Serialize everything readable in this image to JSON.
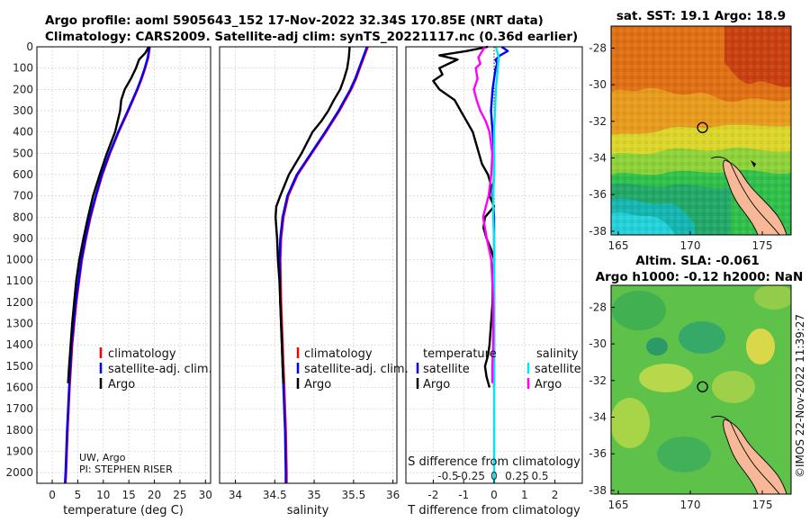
{
  "titles": {
    "line1": "Argo profile: aoml 5905643_152 17-Nov-2022 32.34S 170.85E (NRT data)",
    "line2": "Climatology: CARS2009. Satellite-adj clim: synTS_20221117.nc (0.36d earlier)"
  },
  "credits": {
    "line1": "UW, Argo",
    "line2": "PI: STEPHEN RISER"
  },
  "watermark": "©IMOS 22-Nov-2022 11:39:27",
  "legend": {
    "climatology": "climatology",
    "satellite_adj": "satellite-adj. clim.",
    "argo": "Argo",
    "temperature": "temperature",
    "salinity": "salinity",
    "satellite": "satellite"
  },
  "colors": {
    "climatology": "#ff0000",
    "satellite_adj": "#0000ff",
    "argo": "#000000",
    "sat_temp": "#0000ff",
    "sat_sal": "#00e5ee",
    "argo_sal": "#ff00ff"
  },
  "chart_data": [
    {
      "type": "line",
      "name": "temperature",
      "xlabel": "temperature (deg C)",
      "ylabel": "",
      "xlim": [
        -3,
        31
      ],
      "ylim": [
        2050,
        0
      ],
      "xticks": [
        0,
        5,
        10,
        15,
        20,
        25,
        30
      ],
      "yticks": [
        0,
        100,
        200,
        300,
        400,
        500,
        600,
        700,
        800,
        900,
        1000,
        1100,
        1200,
        1300,
        1400,
        1500,
        1600,
        1700,
        1800,
        1900,
        2000
      ],
      "series": [
        {
          "name": "climatology",
          "depth": [
            0,
            50,
            100,
            150,
            200,
            300,
            400,
            500,
            600,
            700,
            800,
            900,
            1000,
            1200,
            1400,
            1600,
            1800,
            2000,
            2050
          ],
          "values": [
            19.1,
            18.8,
            18.2,
            17.5,
            16.7,
            14.9,
            13.0,
            11.3,
            9.8,
            8.6,
            7.5,
            6.6,
            5.8,
            4.7,
            3.9,
            3.4,
            3.0,
            2.7,
            2.6
          ]
        },
        {
          "name": "satellite-adj. clim.",
          "depth": [
            0,
            50,
            100,
            150,
            200,
            300,
            400,
            500,
            600,
            700,
            800,
            900,
            1000,
            1200,
            1400,
            1600,
            1800,
            2000,
            2050
          ],
          "values": [
            19.0,
            18.7,
            18.1,
            17.4,
            16.6,
            14.8,
            12.9,
            11.2,
            9.7,
            8.5,
            7.4,
            6.5,
            5.7,
            4.6,
            3.8,
            3.3,
            2.9,
            2.6,
            2.5
          ]
        },
        {
          "name": "Argo",
          "depth": [
            0,
            30,
            60,
            100,
            150,
            200,
            250,
            300,
            400,
            500,
            600,
            700,
            800,
            900,
            1000,
            1100,
            1200,
            1300,
            1400,
            1500,
            1580
          ],
          "values": [
            18.9,
            18.2,
            17.0,
            16.4,
            15.4,
            14.2,
            13.5,
            13.3,
            12.3,
            10.7,
            9.3,
            8.0,
            7.0,
            6.1,
            5.3,
            4.7,
            4.3,
            3.9,
            3.6,
            3.3,
            3.1
          ]
        }
      ]
    },
    {
      "type": "line",
      "name": "salinity",
      "xlabel": "salinity",
      "ylabel": "",
      "xlim": [
        33.8,
        36.05
      ],
      "ylim": [
        2050,
        0
      ],
      "xticks": [
        34,
        34.5,
        35,
        35.5,
        36
      ],
      "series": [
        {
          "name": "climatology",
          "depth": [
            0,
            50,
            100,
            150,
            200,
            300,
            400,
            500,
            600,
            700,
            800,
            900,
            1000,
            1200,
            1400,
            1600,
            1800,
            2000,
            2050
          ],
          "values": [
            35.68,
            35.63,
            35.58,
            35.53,
            35.47,
            35.32,
            35.15,
            34.97,
            34.79,
            34.67,
            34.61,
            34.58,
            34.57,
            34.58,
            34.6,
            34.62,
            34.64,
            34.65,
            34.65
          ]
        },
        {
          "name": "satellite-adj. clim.",
          "depth": [
            0,
            50,
            100,
            150,
            200,
            300,
            400,
            500,
            600,
            700,
            800,
            900,
            1000,
            1200,
            1400,
            1600,
            1800,
            2000,
            2050
          ],
          "values": [
            35.67,
            35.62,
            35.57,
            35.52,
            35.46,
            35.31,
            35.14,
            34.96,
            34.78,
            34.66,
            34.6,
            34.57,
            34.56,
            34.57,
            34.59,
            34.61,
            34.63,
            34.64,
            34.64
          ]
        },
        {
          "name": "Argo",
          "depth": [
            0,
            50,
            100,
            150,
            200,
            250,
            300,
            350,
            400,
            500,
            600,
            700,
            750,
            800,
            900,
            1000,
            1100,
            1200,
            1300,
            1400,
            1500,
            1580
          ],
          "values": [
            35.45,
            35.44,
            35.42,
            35.38,
            35.33,
            35.25,
            35.18,
            35.09,
            34.98,
            34.84,
            34.68,
            34.57,
            34.52,
            34.51,
            34.53,
            34.54,
            34.56,
            34.57,
            34.58,
            34.59,
            34.6,
            34.61
          ]
        }
      ]
    },
    {
      "type": "line",
      "name": "difference from climatology",
      "xlabel": "T difference from climatology",
      "x2label": "S difference from climatology",
      "xlim": [
        -2.9,
        2.9
      ],
      "ylim": [
        2050,
        0
      ],
      "xticks": [
        -2,
        -1,
        0,
        1,
        2
      ],
      "x2ticks": [
        -0.5,
        -0.25,
        0,
        0.25,
        0.5
      ],
      "x2tick_labels": [
        "-0.5",
        "-0.25",
        "0",
        "0.25",
        "0.5"
      ],
      "series": [
        {
          "name": "satellite (temperature)",
          "depth": [
            0,
            20,
            40,
            60,
            80,
            100,
            150,
            200,
            300,
            400,
            500,
            600,
            700,
            800,
            1000,
            1200,
            1400,
            1600
          ],
          "values": [
            0.25,
            0.45,
            0.2,
            0.05,
            0.1,
            0.05,
            0.0,
            -0.05,
            -0.1,
            -0.05,
            0.0,
            0.0,
            -0.05,
            0.0,
            0.0,
            0.0,
            0.0,
            0.0
          ]
        },
        {
          "name": "Argo (temperature)",
          "depth": [
            0,
            20,
            40,
            60,
            80,
            100,
            130,
            160,
            200,
            250,
            300,
            350,
            400,
            450,
            500,
            550,
            600,
            650,
            700,
            750,
            800,
            850,
            900,
            950,
            1000,
            1100,
            1200,
            1300,
            1400,
            1450,
            1500,
            1550,
            1600
          ],
          "values": [
            -0.2,
            -0.9,
            -1.8,
            -1.2,
            -1.5,
            -1.8,
            -1.7,
            -2.0,
            -1.8,
            -1.3,
            -1.1,
            -0.9,
            -0.7,
            -0.6,
            -0.5,
            -0.4,
            -0.2,
            -0.1,
            -0.15,
            0.0,
            -0.3,
            -0.35,
            -0.25,
            -0.1,
            0.0,
            -0.05,
            -0.05,
            -0.1,
            -0.15,
            -0.2,
            -0.3,
            -0.25,
            -0.15
          ]
        },
        {
          "name": "satellite (salinity)",
          "depth": [
            0,
            50,
            100,
            200,
            300,
            400,
            500,
            600,
            700,
            800,
            900,
            1000,
            1200,
            1400,
            1600,
            1800,
            2000,
            2050
          ],
          "values": [
            0.02,
            0.05,
            0.04,
            0.02,
            0.01,
            0.0,
            0.0,
            0.0,
            -0.01,
            -0.01,
            0.0,
            0.0,
            0.0,
            0.0,
            0.0,
            0.0,
            0.0,
            0.0
          ]
        },
        {
          "name": "Argo (salinity)",
          "depth": [
            0,
            50,
            80,
            100,
            150,
            200,
            250,
            300,
            350,
            400,
            500,
            600,
            700,
            800,
            900,
            1000,
            1100,
            1200,
            1300,
            1400,
            1500,
            1580
          ],
          "values": [
            -0.1,
            -0.17,
            -0.15,
            -0.2,
            -0.18,
            -0.22,
            -0.19,
            -0.15,
            -0.09,
            -0.05,
            -0.02,
            -0.03,
            -0.06,
            -0.12,
            -0.08,
            -0.03,
            -0.02,
            -0.01,
            -0.01,
            -0.01,
            -0.02,
            -0.02
          ]
        }
      ]
    },
    {
      "type": "heatmap",
      "name": "sat SST map",
      "title": "sat. SST: 19.1 Argo: 18.9",
      "xlim": [
        164.5,
        177
      ],
      "ylim": [
        -38.2,
        -26.8
      ],
      "xticks": [
        165,
        170,
        175
      ],
      "yticks": [
        -28,
        -30,
        -32,
        -34,
        -36,
        -38
      ],
      "marker": {
        "lon": 170.85,
        "lat": -32.34
      }
    },
    {
      "type": "heatmap",
      "name": "altimetry SLA map",
      "title_line1": "Altim. SLA: -0.061",
      "title_line2": "Argo h1000: -0.12 h2000: NaN",
      "xlim": [
        164.5,
        177
      ],
      "ylim": [
        -38.2,
        -26.8
      ],
      "xticks": [
        165,
        170,
        175
      ],
      "yticks": [
        -28,
        -30,
        -32,
        -34,
        -36,
        -38
      ],
      "marker": {
        "lon": 170.85,
        "lat": -32.34
      }
    }
  ]
}
